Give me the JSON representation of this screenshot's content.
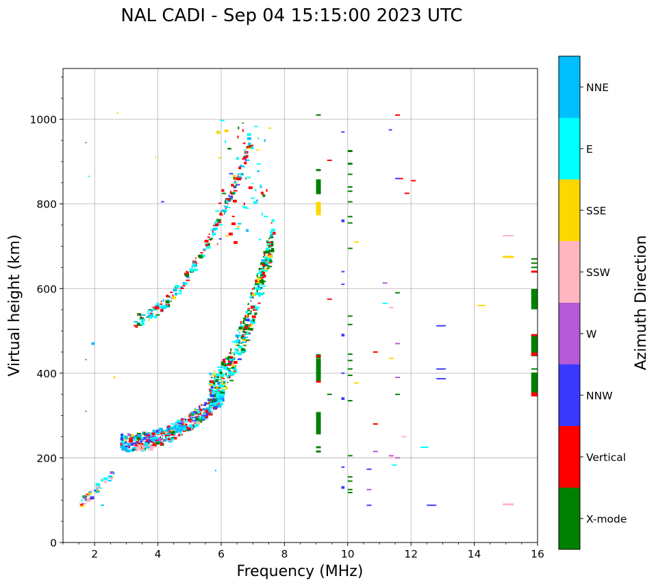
{
  "chart_data": {
    "type": "scatter",
    "title": "NAL CADI - Sep 04 15:15:00 2023 UTC",
    "xlabel": "Frequency (MHz)",
    "ylabel": "Virtual height (km)",
    "xlim": [
      1,
      16
    ],
    "ylim": [
      0,
      1120
    ],
    "xticks": [
      2,
      4,
      6,
      8,
      10,
      12,
      14,
      16
    ],
    "yticks": [
      0,
      200,
      400,
      600,
      800,
      1000
    ],
    "grid": true,
    "colorbar": {
      "title": "Azimuth Direction",
      "categories": [
        "X-mode",
        "Vertical",
        "NNW",
        "W",
        "SSW",
        "SSE",
        "E",
        "NNE"
      ],
      "colors": [
        "#008000",
        "#ff0000",
        "#3a3aff",
        "#b45ad6",
        "#ffb6c1",
        "#ffd700",
        "#00ffff",
        "#00bfff"
      ]
    },
    "series": [
      {
        "name": "X-mode",
        "segments": [
          [
            9.0,
            1010,
            9.15,
            1
          ],
          [
            9.0,
            790,
            9.15,
            15
          ],
          [
            9.0,
            835,
            9.15,
            15
          ],
          [
            9.0,
            845,
            9.15,
            12
          ],
          [
            9.0,
            855,
            9.15,
            4
          ],
          [
            9.0,
            880,
            9.15,
            3
          ],
          [
            9.0,
            400,
            9.15,
            10
          ],
          [
            9.0,
            410,
            9.15,
            12
          ],
          [
            9.0,
            390,
            9.15,
            10
          ],
          [
            9.0,
            425,
            9.15,
            12
          ],
          [
            9.0,
            440,
            9.15,
            6
          ],
          [
            9.0,
            265,
            9.15,
            12
          ],
          [
            9.0,
            280,
            9.15,
            10
          ],
          [
            9.0,
            295,
            9.15,
            10
          ],
          [
            9.0,
            305,
            9.15,
            4
          ],
          [
            9.0,
            225,
            9.15,
            3
          ],
          [
            9.0,
            215,
            9.15,
            3
          ],
          [
            10.0,
            925,
            10.15,
            3
          ],
          [
            10.0,
            895,
            10.15,
            3
          ],
          [
            10.0,
            870,
            10.15,
            2
          ],
          [
            10.0,
            840,
            10.15,
            2
          ],
          [
            10.0,
            830,
            10.15,
            2
          ],
          [
            10.0,
            805,
            10.15,
            2
          ],
          [
            10.0,
            770,
            10.15,
            2
          ],
          [
            10.0,
            755,
            10.15,
            2
          ],
          [
            10.0,
            695,
            10.15,
            2
          ],
          [
            10.0,
            535,
            10.15,
            2
          ],
          [
            10.0,
            515,
            10.15,
            2
          ],
          [
            10.0,
            445,
            10.15,
            2
          ],
          [
            10.0,
            430,
            10.15,
            2
          ],
          [
            10.0,
            410,
            10.15,
            2
          ],
          [
            10.0,
            395,
            10.15,
            2
          ],
          [
            10.0,
            335,
            10.15,
            2
          ],
          [
            10.0,
            205,
            10.15,
            2
          ],
          [
            10.0,
            155,
            10.15,
            2
          ],
          [
            10.0,
            145,
            10.15,
            2
          ],
          [
            10.0,
            125,
            10.15,
            2
          ],
          [
            10.0,
            118,
            10.15,
            2
          ],
          [
            9.35,
            350,
            9.5,
            2
          ],
          [
            11.5,
            590,
            11.65,
            2
          ],
          [
            11.5,
            350,
            11.65,
            2
          ],
          [
            15.8,
            670,
            16.0,
            2
          ],
          [
            15.8,
            660,
            16.0,
            2
          ],
          [
            15.8,
            650,
            16.0,
            2
          ],
          [
            15.8,
            575,
            16.0,
            30
          ],
          [
            15.8,
            485,
            16.0,
            8
          ],
          [
            15.8,
            460,
            16.0,
            25
          ],
          [
            15.8,
            410,
            16.0,
            2
          ],
          [
            15.8,
            400,
            16.0,
            2
          ],
          [
            15.8,
            375,
            16.0,
            30
          ]
        ]
      },
      {
        "name": "Vertical",
        "segments": [
          [
            11.5,
            1010,
            11.65,
            2
          ],
          [
            9.35,
            903,
            9.5,
            2
          ],
          [
            12.0,
            855,
            12.15,
            2
          ],
          [
            11.8,
            825,
            11.95,
            2
          ],
          [
            15.8,
            640,
            16.0,
            3
          ],
          [
            15.8,
            490,
            16.0,
            3
          ],
          [
            15.8,
            445,
            16.0,
            5
          ],
          [
            15.8,
            350,
            16.0,
            6
          ],
          [
            9.35,
            575,
            9.5,
            2
          ],
          [
            10.8,
            280,
            10.95,
            2
          ],
          [
            10.8,
            450,
            10.95,
            2
          ],
          [
            9.0,
            440,
            9.15,
            3
          ],
          [
            9.0,
            380,
            9.15,
            3
          ],
          [
            11.6,
            860,
            11.75,
            2
          ]
        ]
      },
      {
        "name": "NNW",
        "segments": [
          [
            9.8,
            970,
            9.9,
            2
          ],
          [
            9.8,
            760,
            9.9,
            4
          ],
          [
            9.8,
            640,
            9.9,
            2
          ],
          [
            9.8,
            610,
            9.9,
            2
          ],
          [
            9.8,
            490,
            9.9,
            4
          ],
          [
            9.8,
            400,
            9.9,
            2
          ],
          [
            9.8,
            340,
            9.9,
            4
          ],
          [
            9.8,
            178,
            9.9,
            2
          ],
          [
            9.8,
            130,
            9.9,
            4
          ],
          [
            11.3,
            975,
            11.4,
            2
          ],
          [
            12.8,
            512,
            13.1,
            2
          ],
          [
            12.8,
            410,
            13.1,
            2
          ],
          [
            12.8,
            387,
            13.1,
            2
          ],
          [
            12.5,
            88,
            12.8,
            2
          ],
          [
            10.6,
            88,
            10.75,
            2
          ],
          [
            10.6,
            173,
            10.75,
            2
          ],
          [
            11.5,
            860,
            11.65,
            2
          ],
          [
            4.1,
            805,
            4.2,
            2
          ]
        ]
      },
      {
        "name": "W",
        "segments": [
          [
            11.1,
            613,
            11.25,
            2
          ],
          [
            11.5,
            470,
            11.65,
            2
          ],
          [
            11.5,
            390,
            11.65,
            2
          ],
          [
            10.8,
            215,
            10.95,
            2
          ],
          [
            10.6,
            125,
            10.75,
            2
          ],
          [
            11.3,
            205,
            11.45,
            2
          ],
          [
            11.5,
            200,
            11.65,
            2
          ],
          [
            1.7,
            945,
            1.75,
            2
          ],
          [
            1.7,
            432,
            1.75,
            2
          ],
          [
            1.7,
            310,
            1.75,
            2
          ]
        ]
      },
      {
        "name": "SSW",
        "segments": [
          [
            14.9,
            725,
            15.25,
            2
          ],
          [
            14.9,
            90,
            15.25,
            3
          ],
          [
            11.3,
            555,
            11.45,
            2
          ],
          [
            11.7,
            250,
            11.85,
            2
          ],
          [
            11.3,
            200,
            11.45,
            2
          ]
        ]
      },
      {
        "name": "SSE",
        "segments": [
          [
            14.9,
            675,
            15.25,
            3
          ],
          [
            14.1,
            560,
            14.35,
            2
          ],
          [
            10.2,
            710,
            10.35,
            2
          ],
          [
            10.2,
            377,
            10.35,
            2
          ],
          [
            11.3,
            435,
            11.45,
            2
          ],
          [
            9.0,
            785,
            9.15,
            15
          ],
          [
            9.0,
            800,
            9.15,
            6
          ],
          [
            2.7,
            1015,
            2.75,
            2
          ],
          [
            3.9,
            910,
            3.95,
            2
          ],
          [
            2.6,
            390,
            2.65,
            4
          ]
        ]
      },
      {
        "name": "E",
        "segments": [
          [
            11.1,
            565,
            11.25,
            2
          ],
          [
            11.4,
            183,
            11.55,
            2
          ],
          [
            12.3,
            225,
            12.55,
            2
          ],
          [
            1.8,
            865,
            1.85,
            2
          ]
        ]
      },
      {
        "name": "NNE",
        "segments": [
          [
            2.2,
            88,
            2.3,
            2
          ],
          [
            5.8,
            170,
            5.85,
            2
          ],
          [
            1.9,
            470,
            2.0,
            4
          ]
        ]
      }
    ]
  }
}
